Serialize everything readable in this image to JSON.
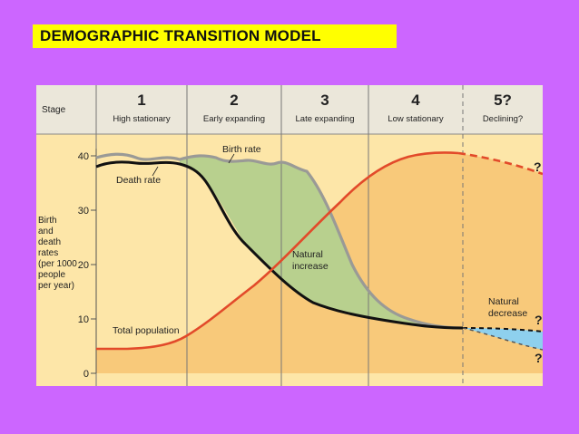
{
  "title": "DEMOGRAPHIC TRANSITION MODEL",
  "stage_header": "Stage",
  "stages": [
    {
      "number": "1",
      "name": "High stationary"
    },
    {
      "number": "2",
      "name": "Early expanding"
    },
    {
      "number": "3",
      "name": "Late expanding"
    },
    {
      "number": "4",
      "name": "Low stationary"
    },
    {
      "number": "5?",
      "name": "Declining?"
    }
  ],
  "y_axis": {
    "label_lines": [
      "Birth",
      "and",
      "death",
      "rates",
      "(per 1000",
      "people",
      "per year)"
    ],
    "ticks": [
      "40",
      "30",
      "20",
      "10",
      "0"
    ]
  },
  "labels": {
    "birth_rate": "Birth rate",
    "death_rate": "Death rate",
    "total_population": "Total population",
    "natural_increase": [
      "Natural",
      "increase"
    ],
    "natural_decrease": [
      "Natural",
      "decrease"
    ],
    "question": "?"
  },
  "colors": {
    "background": "#cc66ff",
    "title_box": "#ffff00",
    "chart_bg": "#fde6a8",
    "header_bg": "#ebe7da",
    "population_fill": "#f8c97a",
    "natural_increase": "#b8d08e",
    "natural_decrease": "#8ed0ee",
    "birth_rate_line": "#9a9a96",
    "death_rate_line": "#111111",
    "population_line": "#e24a2a"
  }
}
